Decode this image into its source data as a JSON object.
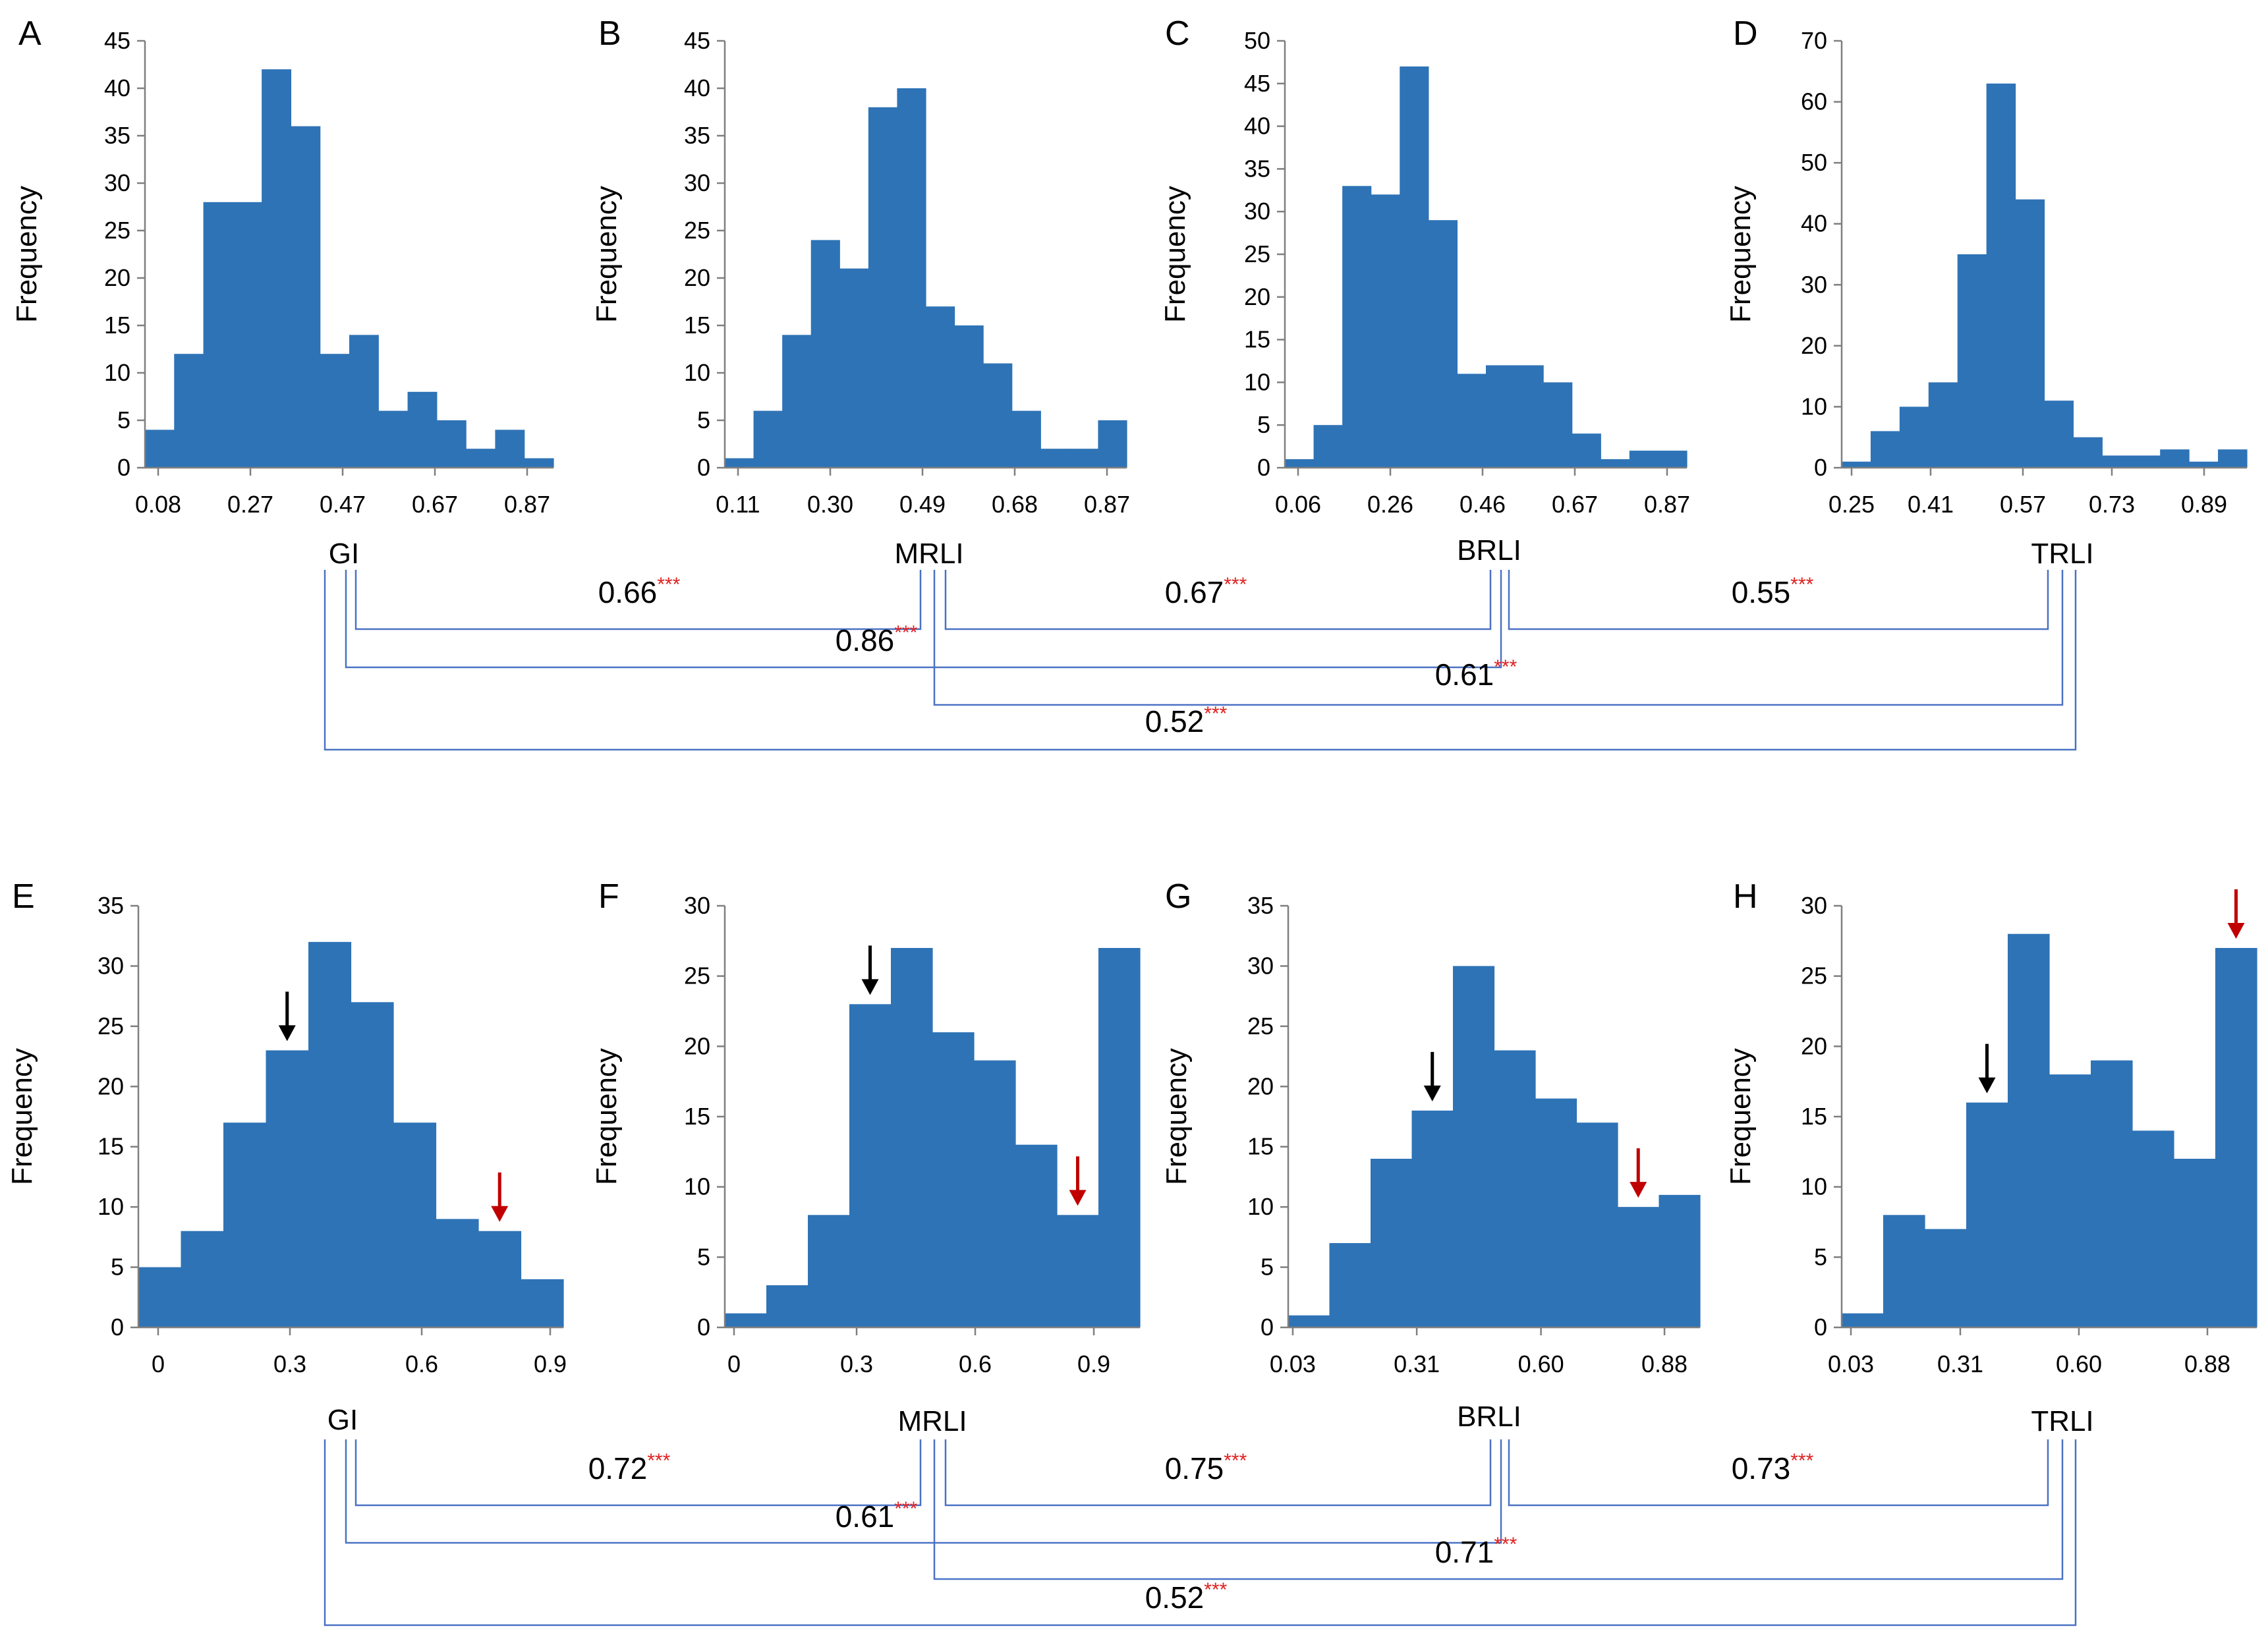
{
  "chart_data": [
    {
      "panel": "A",
      "type": "bar",
      "variable": "GI",
      "ylabel": "Frequency",
      "xlabel": "",
      "ylim": [
        0,
        45
      ],
      "yticks": [
        0,
        5,
        10,
        15,
        20,
        25,
        30,
        35,
        40,
        45
      ],
      "x_tick_labels": [
        "0.08",
        "0.27",
        "0.47",
        "0.67",
        "0.87"
      ],
      "values": [
        4,
        12,
        28,
        28,
        42,
        36,
        12,
        14,
        6,
        8,
        5,
        2,
        4,
        1
      ]
    },
    {
      "panel": "B",
      "type": "bar",
      "variable": "MRLI",
      "ylabel": "Frequency",
      "xlabel": "",
      "ylim": [
        0,
        45
      ],
      "yticks": [
        0,
        5,
        10,
        15,
        20,
        25,
        30,
        35,
        40,
        45
      ],
      "x_tick_labels": [
        "0.11",
        "0.30",
        "0.49",
        "0.68",
        "0.87"
      ],
      "values": [
        1,
        6,
        14,
        24,
        21,
        38,
        40,
        17,
        15,
        11,
        6,
        2,
        2,
        5
      ]
    },
    {
      "panel": "C",
      "type": "bar",
      "variable": "BRLI",
      "ylabel": "Frequency",
      "xlabel": "",
      "ylim": [
        0,
        50
      ],
      "yticks": [
        0,
        5,
        10,
        15,
        20,
        25,
        30,
        35,
        40,
        45,
        50
      ],
      "x_tick_labels": [
        "0.06",
        "0.26",
        "0.46",
        "0.67",
        "0.87"
      ],
      "values": [
        1,
        5,
        33,
        32,
        47,
        29,
        11,
        12,
        12,
        10,
        4,
        1,
        2,
        2
      ]
    },
    {
      "panel": "D",
      "type": "bar",
      "variable": "TRLI",
      "ylabel": "Frequency",
      "xlabel": "",
      "ylim": [
        0,
        70
      ],
      "yticks": [
        0,
        10,
        20,
        30,
        40,
        50,
        60,
        70
      ],
      "x_tick_labels": [
        "0.25",
        "0.41",
        "0.57",
        "0.73",
        "0.89"
      ],
      "values": [
        1,
        6,
        10,
        14,
        35,
        63,
        44,
        11,
        5,
        2,
        2,
        3,
        1,
        3
      ]
    },
    {
      "panel": "E",
      "type": "bar",
      "variable": "GI",
      "ylabel": "Frequency",
      "xlabel": "",
      "ylim": [
        0,
        35
      ],
      "yticks": [
        0,
        5,
        10,
        15,
        20,
        25,
        30,
        35
      ],
      "x_tick_labels": [
        "0",
        "0.3",
        "0.6",
        "0.9"
      ],
      "values": [
        5,
        8,
        17,
        23,
        32,
        27,
        17,
        9,
        8,
        4
      ],
      "annotations": [
        {
          "color": "#000000",
          "bin_index": 3
        },
        {
          "color": "#c00000",
          "bin_index": 8
        }
      ]
    },
    {
      "panel": "F",
      "type": "bar",
      "variable": "MRLI",
      "ylabel": "Frequency",
      "xlabel": "",
      "ylim": [
        0,
        30
      ],
      "yticks": [
        0,
        5,
        10,
        15,
        20,
        25,
        30
      ],
      "x_tick_labels": [
        "0",
        "0.3",
        "0.6",
        "0.9"
      ],
      "values": [
        1,
        3,
        8,
        23,
        27,
        21,
        19,
        13,
        8,
        27
      ],
      "annotations": [
        {
          "color": "#000000",
          "bin_index": 3
        },
        {
          "color": "#c00000",
          "bin_index": 8
        }
      ]
    },
    {
      "panel": "G",
      "type": "bar",
      "variable": "BRLI",
      "ylabel": "Frequency",
      "xlabel": "",
      "ylim": [
        0,
        35
      ],
      "yticks": [
        0,
        5,
        10,
        15,
        20,
        25,
        30,
        35
      ],
      "x_tick_labels": [
        "0.03",
        "0.31",
        "0.60",
        "0.88"
      ],
      "values": [
        1,
        7,
        14,
        18,
        30,
        23,
        19,
        17,
        10,
        11
      ],
      "annotations": [
        {
          "color": "#000000",
          "bin_index": 3
        },
        {
          "color": "#c00000",
          "bin_index": 8
        }
      ]
    },
    {
      "panel": "H",
      "type": "bar",
      "variable": "TRLI",
      "ylabel": "Frequency",
      "xlabel": "",
      "ylim": [
        0,
        30
      ],
      "yticks": [
        0,
        5,
        10,
        15,
        20,
        25,
        30
      ],
      "x_tick_labels": [
        "0.03",
        "0.31",
        "0.60",
        "0.88"
      ],
      "values": [
        1,
        8,
        7,
        16,
        28,
        18,
        19,
        14,
        12,
        27
      ],
      "annotations": [
        {
          "color": "#000000",
          "bin_index": 3
        },
        {
          "color": "#c00000",
          "bin_index": 9
        }
      ]
    }
  ],
  "correlations": [
    {
      "group": "top",
      "pairs": [
        {
          "a": "GI",
          "b": "MRLI",
          "r": "0.66",
          "sig": "***"
        },
        {
          "a": "MRLI",
          "b": "BRLI",
          "r": "0.67",
          "sig": "***"
        },
        {
          "a": "BRLI",
          "b": "TRLI",
          "r": "0.55",
          "sig": "***"
        },
        {
          "a": "GI",
          "b": "BRLI",
          "r": "0.86",
          "sig": "***"
        },
        {
          "a": "MRLI",
          "b": "TRLI",
          "r": "0.61",
          "sig": "***"
        },
        {
          "a": "GI",
          "b": "TRLI",
          "r": "0.52",
          "sig": "***"
        }
      ]
    },
    {
      "group": "bottom",
      "pairs": [
        {
          "a": "GI",
          "b": "MRLI",
          "r": "0.72",
          "sig": "***"
        },
        {
          "a": "MRLI",
          "b": "BRLI",
          "r": "0.75",
          "sig": "***"
        },
        {
          "a": "BRLI",
          "b": "TRLI",
          "r": "0.73",
          "sig": "***"
        },
        {
          "a": "GI",
          "b": "BRLI",
          "r": "0.61",
          "sig": "***"
        },
        {
          "a": "MRLI",
          "b": "TRLI",
          "r": "0.71",
          "sig": "***"
        },
        {
          "a": "GI",
          "b": "TRLI",
          "r": "0.52",
          "sig": "***"
        }
      ]
    }
  ],
  "colors": {
    "bar": "#2e73b6",
    "bracket": "#4a72c4",
    "star": "#e02020",
    "arrow_black": "#000000",
    "arrow_red": "#c00000"
  }
}
